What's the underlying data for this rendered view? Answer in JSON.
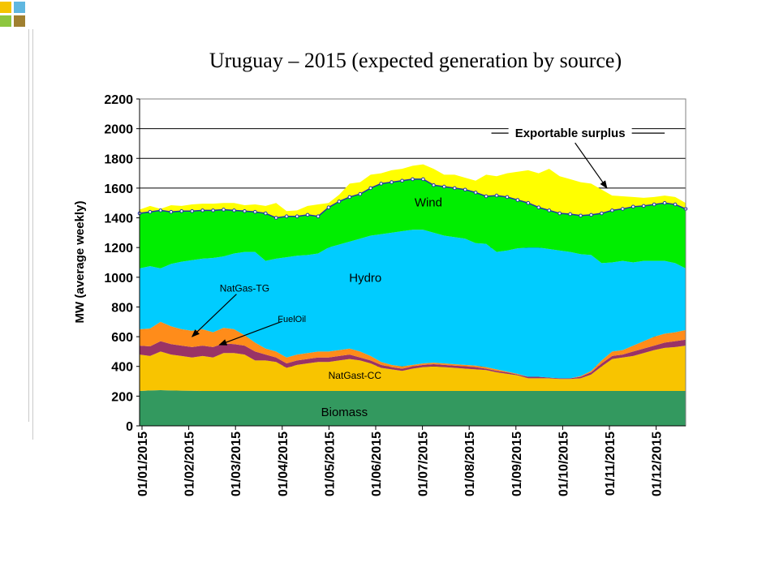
{
  "colors": {
    "corner_squares": [
      "#f5c400",
      "#5fb7e0",
      "#8dc63f",
      "#a08030"
    ],
    "series": {
      "Biomass": "#33995f",
      "NatGast-CC": "#f8c400",
      "FuelOil": "#993366",
      "NatGas-TG": "#ff8c1a",
      "Hydro": "#00ccff",
      "Wind": "#00ee00",
      "Exportable surplus": "#ffff00"
    },
    "demand_line": "#2233aa"
  },
  "chart_data": {
    "type": "area",
    "title": "Uruguay – 2015  (expected generation by source)",
    "ylabel": "MW (average weekly)",
    "xlabel": "",
    "ylim": [
      0,
      2200
    ],
    "yticks": [
      0,
      200,
      400,
      600,
      800,
      1000,
      1200,
      1400,
      1600,
      1800,
      2000,
      2200
    ],
    "grid": "horizontal",
    "x_tick_labels": [
      "01/01/2015",
      "01/02/2015",
      "01/03/2015",
      "01/04/2015",
      "01/05/2015",
      "01/06/2015",
      "01/07/2015",
      "01/08/2015",
      "01/09/2015",
      "01/10/2015",
      "01/11/2015",
      "01/12/2015"
    ],
    "x_weeks": [
      0,
      1,
      2,
      3,
      4,
      5,
      6,
      7,
      8,
      9,
      10,
      11,
      12,
      13,
      14,
      15,
      16,
      17,
      18,
      19,
      20,
      21,
      22,
      23,
      24,
      25,
      26,
      27,
      28,
      29,
      30,
      31,
      32,
      33,
      34,
      35,
      36,
      37,
      38,
      39,
      40,
      41,
      42,
      43,
      44,
      45,
      46,
      47,
      48,
      49,
      50,
      51,
      52
    ],
    "series": [
      {
        "name": "Biomass",
        "cumulative": [
          235,
          238,
          240,
          238,
          237,
          236,
          235,
          235,
          235,
          235,
          235,
          235,
          235,
          235,
          235,
          235,
          235,
          235,
          235,
          235,
          235,
          235,
          235,
          235,
          235,
          235,
          235,
          235,
          235,
          235,
          235,
          235,
          235,
          235,
          235,
          235,
          235,
          235,
          235,
          235,
          235,
          235,
          235,
          235,
          235,
          235,
          235,
          235,
          235,
          235,
          235,
          235,
          235
        ]
      },
      {
        "name": "NatGast-CC",
        "cumulative": [
          480,
          470,
          500,
          480,
          470,
          460,
          470,
          460,
          490,
          490,
          480,
          440,
          440,
          430,
          390,
          410,
          420,
          430,
          430,
          440,
          450,
          440,
          420,
          390,
          380,
          370,
          385,
          395,
          400,
          395,
          390,
          385,
          380,
          375,
          360,
          350,
          340,
          320,
          320,
          320,
          315,
          315,
          320,
          345,
          400,
          450,
          460,
          470,
          490,
          510,
          525,
          530,
          540
        ]
      },
      {
        "name": "FuelOil",
        "cumulative": [
          540,
          535,
          570,
          550,
          540,
          530,
          540,
          530,
          555,
          550,
          540,
          500,
          480,
          460,
          420,
          440,
          450,
          460,
          460,
          470,
          480,
          460,
          440,
          410,
          395,
          385,
          400,
          410,
          415,
          410,
          405,
          400,
          395,
          385,
          370,
          360,
          345,
          330,
          330,
          325,
          320,
          320,
          330,
          360,
          420,
          470,
          480,
          500,
          520,
          540,
          560,
          570,
          580
        ]
      },
      {
        "name": "NatGas-TG",
        "cumulative": [
          650,
          655,
          700,
          670,
          650,
          640,
          650,
          630,
          660,
          650,
          610,
          560,
          520,
          500,
          460,
          480,
          490,
          500,
          500,
          510,
          520,
          500,
          470,
          430,
          410,
          400,
          410,
          420,
          425,
          420,
          415,
          410,
          405,
          395,
          380,
          365,
          350,
          330,
          330,
          325,
          320,
          320,
          335,
          370,
          440,
          500,
          510,
          540,
          570,
          600,
          620,
          630,
          645
        ]
      },
      {
        "name": "Hydro",
        "cumulative": [
          1060,
          1075,
          1060,
          1090,
          1105,
          1115,
          1125,
          1130,
          1140,
          1160,
          1170,
          1170,
          1110,
          1125,
          1135,
          1145,
          1150,
          1160,
          1200,
          1220,
          1240,
          1260,
          1280,
          1290,
          1300,
          1310,
          1320,
          1320,
          1300,
          1280,
          1270,
          1260,
          1230,
          1225,
          1170,
          1180,
          1195,
          1200,
          1200,
          1190,
          1180,
          1170,
          1155,
          1150,
          1095,
          1100,
          1110,
          1100,
          1110,
          1110,
          1110,
          1095,
          1060
        ]
      },
      {
        "name": "Wind",
        "cumulative": [
          1430,
          1440,
          1450,
          1440,
          1445,
          1445,
          1450,
          1450,
          1455,
          1450,
          1445,
          1440,
          1430,
          1400,
          1410,
          1410,
          1420,
          1410,
          1470,
          1510,
          1540,
          1560,
          1600,
          1630,
          1640,
          1650,
          1660,
          1660,
          1620,
          1610,
          1600,
          1590,
          1570,
          1545,
          1550,
          1540,
          1520,
          1500,
          1470,
          1450,
          1430,
          1425,
          1415,
          1420,
          1430,
          1450,
          1460,
          1475,
          1480,
          1490,
          1500,
          1490,
          1460
        ]
      },
      {
        "name": "Exportable surplus",
        "cumulative": [
          1455,
          1480,
          1460,
          1485,
          1480,
          1490,
          1495,
          1495,
          1500,
          1500,
          1485,
          1490,
          1480,
          1500,
          1445,
          1450,
          1480,
          1490,
          1500,
          1555,
          1630,
          1640,
          1690,
          1700,
          1720,
          1730,
          1750,
          1760,
          1730,
          1690,
          1690,
          1670,
          1650,
          1690,
          1680,
          1700,
          1710,
          1720,
          1700,
          1730,
          1680,
          1660,
          1640,
          1630,
          1590,
          1550,
          1545,
          1540,
          1535,
          1540,
          1550,
          1540,
          1500
        ]
      }
    ],
    "annotations": [
      {
        "text": "Wind",
        "week": 27.5,
        "mw": 1505
      },
      {
        "text": "Hydro",
        "week": 21.5,
        "mw": 995
      },
      {
        "text": "Biomass",
        "week": 19.5,
        "mw": 92
      },
      {
        "text": "NatGast-CC",
        "week": 20.5,
        "mw": 345
      },
      {
        "text": "NatGas-TG",
        "week": 10,
        "mw": 930,
        "arrow_to": {
          "week": 5,
          "mw": 600
        }
      },
      {
        "text": "FuelOil",
        "week": 14.5,
        "mw": 725,
        "arrow_to": {
          "week": 7.6,
          "mw": 545
        }
      },
      {
        "text": "Exportable surplus",
        "week": 41,
        "mw": 1970,
        "arrow_to": {
          "week": 44.5,
          "mw": 1600
        }
      }
    ]
  }
}
